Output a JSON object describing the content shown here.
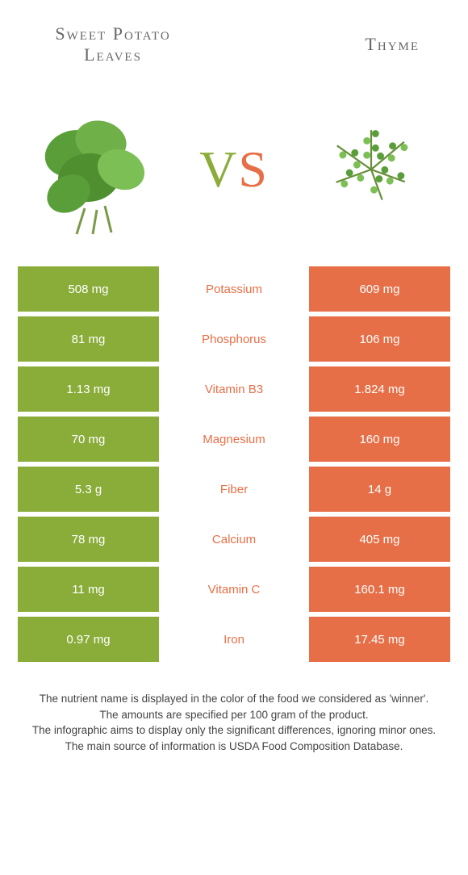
{
  "titles": {
    "left": "Sweet Potato Leaves",
    "right": "Thyme"
  },
  "vs": {
    "v": "V",
    "s": "S"
  },
  "colors": {
    "left": "#8aad3a",
    "right": "#e76f47",
    "white": "#ffffff"
  },
  "rows": [
    {
      "nutrient": "Potassium",
      "left": "508 mg",
      "right": "609 mg",
      "winner": "right"
    },
    {
      "nutrient": "Phosphorus",
      "left": "81 mg",
      "right": "106 mg",
      "winner": "right"
    },
    {
      "nutrient": "Vitamin B3",
      "left": "1.13 mg",
      "right": "1.824 mg",
      "winner": "right"
    },
    {
      "nutrient": "Magnesium",
      "left": "70 mg",
      "right": "160 mg",
      "winner": "right"
    },
    {
      "nutrient": "Fiber",
      "left": "5.3 g",
      "right": "14 g",
      "winner": "right"
    },
    {
      "nutrient": "Calcium",
      "left": "78 mg",
      "right": "405 mg",
      "winner": "right"
    },
    {
      "nutrient": "Vitamin C",
      "left": "11 mg",
      "right": "160.1 mg",
      "winner": "right"
    },
    {
      "nutrient": "Iron",
      "left": "0.97 mg",
      "right": "17.45 mg",
      "winner": "right"
    }
  ],
  "footer": {
    "l1": "The nutrient name is displayed in the color of the food we considered as 'winner'.",
    "l2": "The amounts are specified per 100 gram of the product.",
    "l3": "The infographic aims to display only the significant differences, ignoring minor ones.",
    "l4": "The main source of information is USDA Food Composition Database."
  },
  "fontsize": {
    "title": 22,
    "vs": 64,
    "cell": 15,
    "footer": 13.5
  }
}
